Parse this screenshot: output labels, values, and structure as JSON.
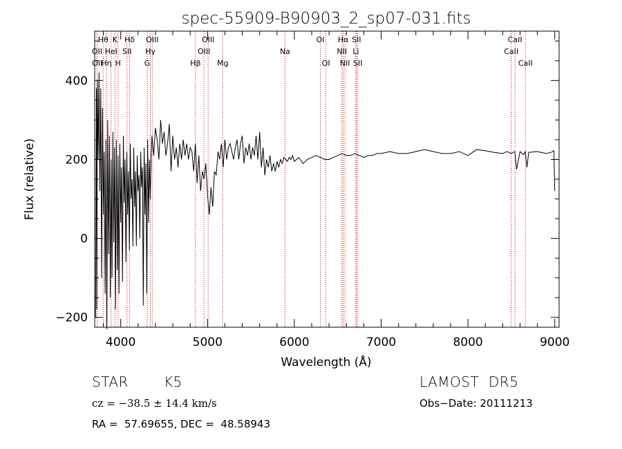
{
  "chart_data": {
    "type": "line",
    "title": "spec-55909-B90903_2_sp07-031.fits",
    "xlabel": "Wavelength (Å)",
    "ylabel": "Flux (relative)",
    "xlim": [
      3700,
      9050
    ],
    "ylim": [
      -225,
      525
    ],
    "x_ticks": [
      4000,
      5000,
      6000,
      7000,
      8000,
      9000
    ],
    "y_ticks": [
      -200,
      0,
      200,
      400
    ],
    "grid": false,
    "line_color": "#000000",
    "marker_color": "#cc0000",
    "lines": [
      {
        "label": "Hθ",
        "wave": 3798,
        "row": 0
      },
      {
        "label": "OII",
        "wave": 3727,
        "row": 1
      },
      {
        "label": "OII",
        "wave": 3729,
        "row": 2
      },
      {
        "label": "Hη",
        "wave": 3835,
        "row": 2
      },
      {
        "label": "K",
        "wave": 3934,
        "row": 0
      },
      {
        "label": "HeI",
        "wave": 3889,
        "row": 1
      },
      {
        "label": "H",
        "wave": 3969,
        "row": 2
      },
      {
        "label": "Hδ",
        "wave": 4102,
        "row": 0
      },
      {
        "label": "SII",
        "wave": 4072,
        "row": 1
      },
      {
        "label": "OIII",
        "wave": 4363,
        "row": 0
      },
      {
        "label": "Hγ",
        "wave": 4341,
        "row": 1
      },
      {
        "label": "G",
        "wave": 4305,
        "row": 2
      },
      {
        "label": "OIII",
        "wave": 5007,
        "row": 0
      },
      {
        "label": "OIII",
        "wave": 4959,
        "row": 1
      },
      {
        "label": "Hβ",
        "wave": 4861,
        "row": 2
      },
      {
        "label": "Mg",
        "wave": 5175,
        "row": 2
      },
      {
        "label": "Na",
        "wave": 5893,
        "row": 1
      },
      {
        "label": "OI",
        "wave": 6300,
        "row": 0
      },
      {
        "label": "OI",
        "wave": 6364,
        "row": 2
      },
      {
        "label": "Hα",
        "wave": 6563,
        "row": 0
      },
      {
        "label": "NII",
        "wave": 6548,
        "row": 1
      },
      {
        "label": "NII",
        "wave": 6583,
        "row": 2
      },
      {
        "label": "SII",
        "wave": 6716,
        "row": 0
      },
      {
        "label": "Li",
        "wave": 6708,
        "row": 1
      },
      {
        "label": "SII",
        "wave": 6731,
        "row": 2
      },
      {
        "label": "CaII",
        "wave": 8542,
        "row": 0
      },
      {
        "label": "CaII",
        "wave": 8498,
        "row": 1
      },
      {
        "label": "CaII",
        "wave": 8662,
        "row": 2
      }
    ],
    "series": [
      {
        "x": [
          3710,
          3720,
          3725,
          3730,
          3740,
          3750,
          3760,
          3770,
          3780,
          3790,
          3800,
          3810,
          3820,
          3830,
          3840,
          3850,
          3860,
          3870,
          3880,
          3890,
          3900,
          3910,
          3920,
          3930,
          3940,
          3950,
          3960,
          3970,
          3980,
          3990,
          4000,
          4010,
          4020,
          4030,
          4040,
          4050,
          4060,
          4070,
          4080,
          4090,
          4100,
          4110,
          4120,
          4130,
          4140,
          4150,
          4160,
          4170,
          4180,
          4190,
          4200,
          4210,
          4220,
          4230,
          4240,
          4250,
          4260,
          4270,
          4280,
          4290,
          4300,
          4310,
          4320,
          4330,
          4340,
          4350,
          4360,
          4380,
          4400,
          4420,
          4440,
          4460,
          4480,
          4500,
          4520,
          4540,
          4560,
          4580,
          4600,
          4620,
          4640,
          4660,
          4680,
          4700,
          4720,
          4740,
          4760,
          4780,
          4800,
          4820,
          4840,
          4860,
          4880,
          4900,
          4920,
          4940,
          4960,
          4980,
          5000,
          5020,
          5040,
          5060,
          5080,
          5100,
          5120,
          5140,
          5160,
          5180,
          5200,
          5220,
          5240,
          5260,
          5280,
          5300,
          5320,
          5340,
          5360,
          5380,
          5400,
          5420,
          5440,
          5460,
          5480,
          5500,
          5520,
          5540,
          5560,
          5580,
          5600,
          5620,
          5640,
          5660,
          5680,
          5700,
          5720,
          5740,
          5760,
          5780,
          5800,
          5820,
          5840,
          5860,
          5880,
          5900,
          5920,
          5940,
          5960,
          5980,
          6000,
          6050,
          6100,
          6150,
          6200,
          6250,
          6300,
          6350,
          6400,
          6450,
          6500,
          6550,
          6600,
          6650,
          6700,
          6750,
          6800,
          6850,
          6900,
          6950,
          7000,
          7100,
          7200,
          7300,
          7400,
          7500,
          7600,
          7700,
          7800,
          7900,
          8000,
          8100,
          8200,
          8300,
          8400,
          8450,
          8500,
          8520,
          8540,
          8560,
          8600,
          8640,
          8660,
          8680,
          8700,
          8800,
          8900,
          8960,
          8990,
          9000
        ],
        "y": [
          -200,
          380,
          -180,
          400,
          200,
          420,
          120,
          380,
          -100,
          330,
          60,
          220,
          -140,
          250,
          -230,
          300,
          -40,
          260,
          -150,
          200,
          -100,
          270,
          -10,
          230,
          -180,
          250,
          -80,
          210,
          -140,
          240,
          40,
          180,
          -110,
          260,
          90,
          200,
          -60,
          220,
          60,
          170,
          -30,
          240,
          100,
          150,
          -20,
          230,
          80,
          170,
          -20,
          210,
          120,
          160,
          0,
          220,
          130,
          180,
          -170,
          230,
          60,
          190,
          -140,
          250,
          40,
          200,
          100,
          200,
          260,
          210,
          280,
          250,
          200,
          300,
          240,
          270,
          210,
          240,
          290,
          170,
          260,
          200,
          230,
          180,
          240,
          200,
          250,
          210,
          240,
          200,
          230,
          220,
          170,
          240,
          140,
          210,
          120,
          170,
          150,
          190,
          110,
          60,
          130,
          80,
          170,
          160,
          220,
          200,
          240,
          180,
          250,
          200,
          230,
          240,
          220,
          200,
          230,
          250,
          200,
          240,
          260,
          190,
          230,
          210,
          240,
          200,
          230,
          210,
          260,
          200,
          270,
          180,
          230,
          160,
          200,
          180,
          210,
          170,
          190,
          170,
          195,
          180,
          200,
          190,
          205,
          200,
          195,
          205,
          200,
          210,
          195,
          205,
          190,
          200,
          205,
          210,
          205,
          200,
          200,
          205,
          210,
          215,
          210,
          210,
          215,
          210,
          205,
          210,
          210,
          215,
          215,
          220,
          215,
          215,
          220,
          225,
          220,
          215,
          215,
          220,
          210,
          225,
          222,
          218,
          215,
          220,
          215,
          218,
          220,
          175,
          220,
          212,
          220,
          180,
          218,
          220,
          215,
          218,
          222,
          120
        ]
      }
    ]
  },
  "info": {
    "object_class": "STAR",
    "subclass": "K5",
    "survey": "LAMOST  DR5",
    "cz": "cz = −38.5 ± 14.4 km/s",
    "obs_date": "Obs−Date: 20111213",
    "radec": "RA =  57.69655, DEC =  48.58943"
  }
}
